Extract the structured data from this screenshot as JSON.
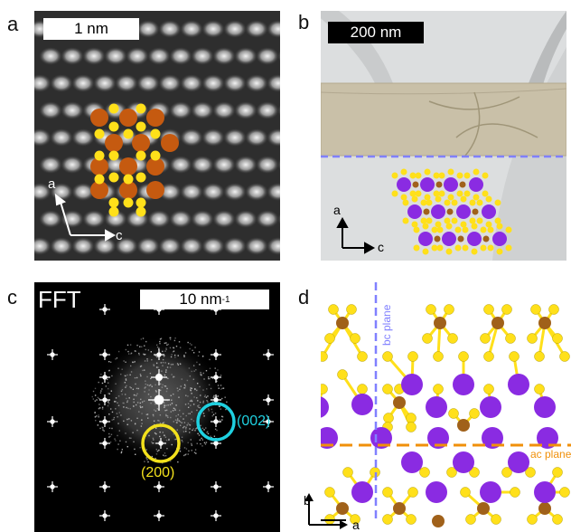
{
  "panel_letters": {
    "a": "a",
    "b": "b",
    "c": "c",
    "d": "d"
  },
  "panel_a": {
    "scalebar": "1 nm",
    "axis_a": "a",
    "axis_c": "c"
  },
  "panel_b": {
    "scalebar": "200 nm",
    "axis_a": "a",
    "axis_c": "c"
  },
  "panel_c": {
    "title": "FFT",
    "scalebar_base": "10 nm",
    "scalebar_sup": "-1",
    "spot_002": "(002)",
    "spot_200": "(200)"
  },
  "panel_d": {
    "bc_plane": "bc plane",
    "ac_plane": "ac plane",
    "axis_b": "b",
    "axis_a": "a"
  },
  "colors": {
    "bi_atom": "#c55a10",
    "s_atom": "#ffe01a",
    "purple_atom": "#8a2be2",
    "brown_atom": "#a0611a",
    "bc_line": "#8080ff",
    "ac_line": "#f0900a",
    "cyan_circle": "#1fd0e0",
    "yellow_circle": "#f2e01c"
  }
}
